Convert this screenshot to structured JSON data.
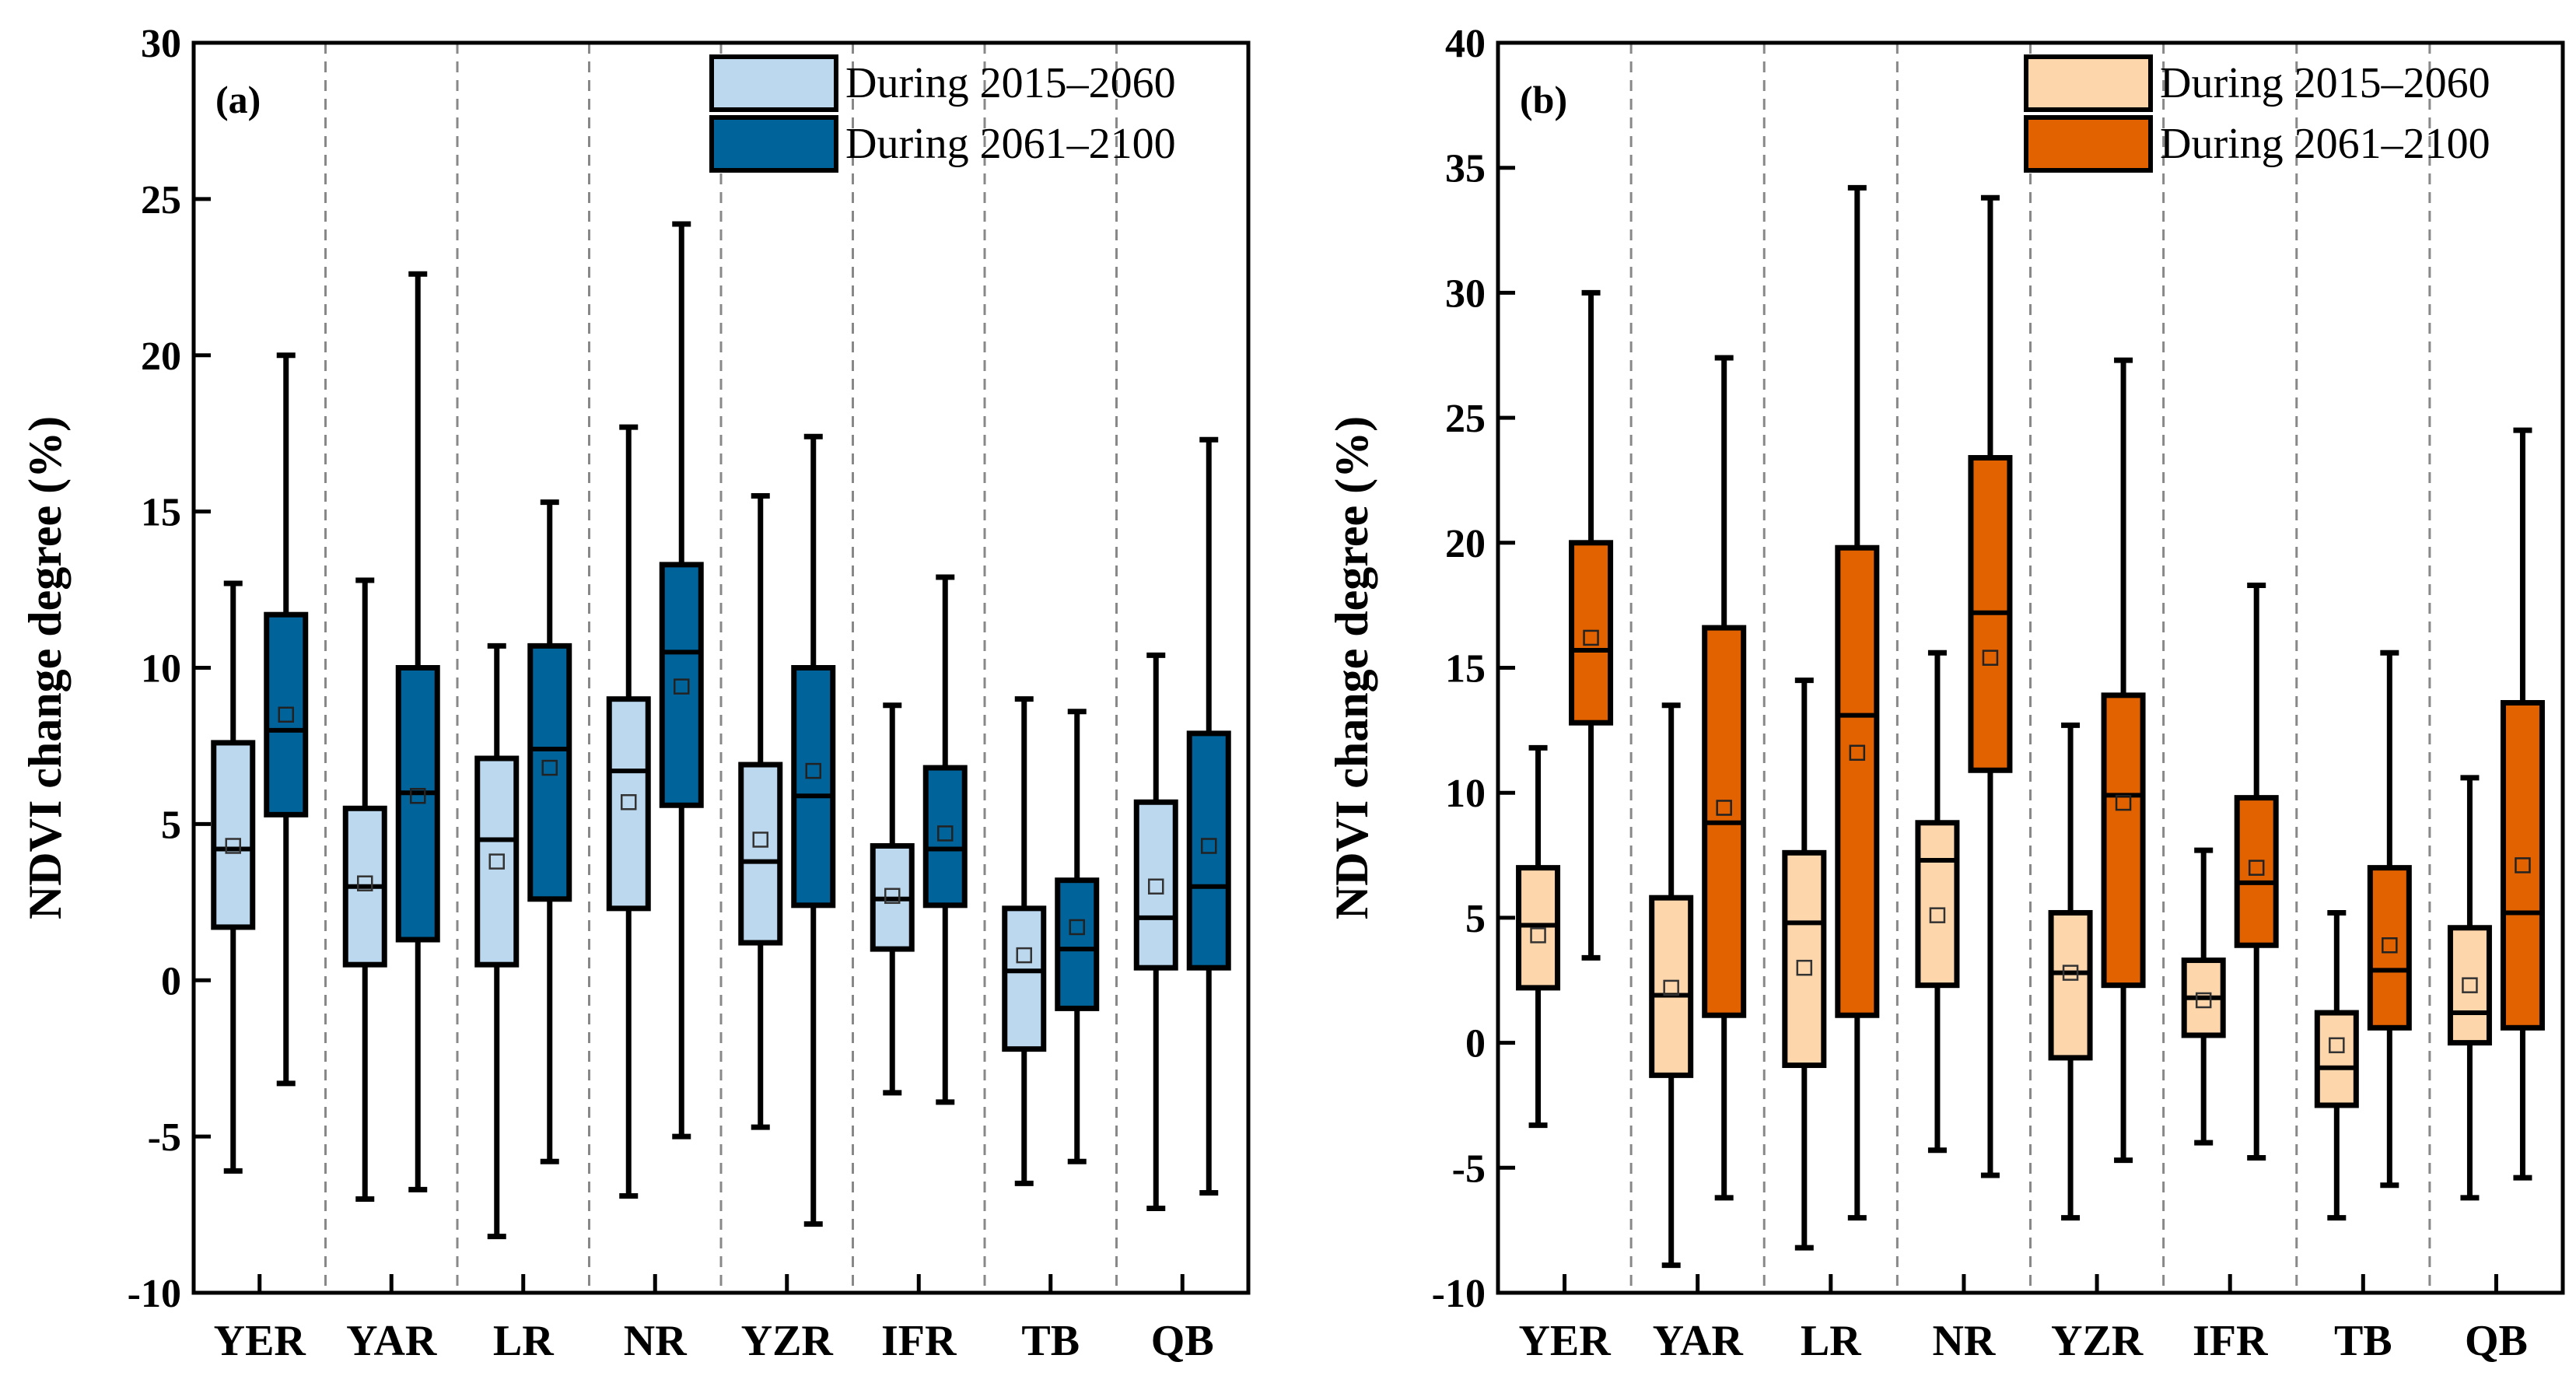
{
  "chart_data": [
    {
      "type": "box",
      "panel_label": "(a)",
      "ylabel": "NDVI change degree (%)",
      "ylim": [
        -10,
        30
      ],
      "yticks": [
        -10,
        -5,
        0,
        5,
        10,
        15,
        20,
        25,
        30
      ],
      "categories": [
        "YER",
        "YAR",
        "LR",
        "NR",
        "YZR",
        "IFR",
        "TB",
        "QB"
      ],
      "legend_position": "top-right",
      "series": [
        {
          "name": "During 2015–2060",
          "color": "#bcd8ee",
          "boxes": [
            {
              "min": -6.1,
              "q1": 1.7,
              "median": 4.2,
              "q3": 7.6,
              "max": 12.7,
              "mean": 4.3
            },
            {
              "min": -7.0,
              "q1": 0.5,
              "median": 3.0,
              "q3": 5.5,
              "max": 12.8,
              "mean": 3.1
            },
            {
              "min": -8.2,
              "q1": 0.5,
              "median": 4.5,
              "q3": 7.1,
              "max": 10.7,
              "mean": 3.8
            },
            {
              "min": -6.9,
              "q1": 2.3,
              "median": 6.7,
              "q3": 9.0,
              "max": 17.7,
              "mean": 5.7
            },
            {
              "min": -4.7,
              "q1": 1.2,
              "median": 3.8,
              "q3": 6.9,
              "max": 15.5,
              "mean": 4.5
            },
            {
              "min": -3.6,
              "q1": 1.0,
              "median": 2.6,
              "q3": 4.3,
              "max": 8.8,
              "mean": 2.7
            },
            {
              "min": -6.5,
              "q1": -2.2,
              "median": 0.3,
              "q3": 2.3,
              "max": 9.0,
              "mean": 0.8
            },
            {
              "min": -7.3,
              "q1": 0.4,
              "median": 2.0,
              "q3": 5.7,
              "max": 10.4,
              "mean": 3.0
            }
          ]
        },
        {
          "name": "During 2061–2100",
          "color": "#00649b",
          "boxes": [
            {
              "min": -3.3,
              "q1": 5.3,
              "median": 8.0,
              "q3": 11.7,
              "max": 20.0,
              "mean": 8.5
            },
            {
              "min": -6.7,
              "q1": 1.3,
              "median": 6.0,
              "q3": 10.0,
              "max": 22.6,
              "mean": 5.9
            },
            {
              "min": -5.8,
              "q1": 2.6,
              "median": 7.4,
              "q3": 10.7,
              "max": 15.3,
              "mean": 6.8
            },
            {
              "min": -5.0,
              "q1": 5.6,
              "median": 10.5,
              "q3": 13.3,
              "max": 24.2,
              "mean": 9.4
            },
            {
              "min": -7.8,
              "q1": 2.4,
              "median": 5.9,
              "q3": 10.0,
              "max": 17.4,
              "mean": 6.7
            },
            {
              "min": -3.9,
              "q1": 2.4,
              "median": 4.2,
              "q3": 6.8,
              "max": 12.9,
              "mean": 4.7
            },
            {
              "min": -5.8,
              "q1": -0.9,
              "median": 1.0,
              "q3": 3.2,
              "max": 8.6,
              "mean": 1.7
            },
            {
              "min": -6.8,
              "q1": 0.4,
              "median": 3.0,
              "q3": 7.9,
              "max": 17.3,
              "mean": 4.3
            }
          ]
        }
      ]
    },
    {
      "type": "box",
      "panel_label": "(b)",
      "ylabel": "NDVI change degree (%)",
      "ylim": [
        -10,
        40
      ],
      "yticks": [
        -10,
        -5,
        0,
        5,
        10,
        15,
        20,
        25,
        30,
        35,
        40
      ],
      "categories": [
        "YER",
        "YAR",
        "LR",
        "NR",
        "YZR",
        "IFR",
        "TB",
        "QB"
      ],
      "legend_position": "top-right",
      "series": [
        {
          "name": "During 2015–2060",
          "color": "#fdd6ab",
          "boxes": [
            {
              "min": -3.3,
              "q1": 2.2,
              "median": 4.7,
              "q3": 7.0,
              "max": 11.8,
              "mean": 4.3
            },
            {
              "min": -8.9,
              "q1": -1.3,
              "median": 1.9,
              "q3": 5.8,
              "max": 13.5,
              "mean": 2.2
            },
            {
              "min": -8.2,
              "q1": -0.9,
              "median": 4.8,
              "q3": 7.6,
              "max": 14.5,
              "mean": 3.0
            },
            {
              "min": -4.3,
              "q1": 2.3,
              "median": 7.3,
              "q3": 8.8,
              "max": 15.6,
              "mean": 5.1
            },
            {
              "min": -7.0,
              "q1": -0.6,
              "median": 2.8,
              "q3": 5.2,
              "max": 12.7,
              "mean": 2.8
            },
            {
              "min": -4.0,
              "q1": 0.3,
              "median": 1.8,
              "q3": 3.3,
              "max": 7.7,
              "mean": 1.7
            },
            {
              "min": -7.0,
              "q1": -2.5,
              "median": -1.0,
              "q3": 1.2,
              "max": 5.2,
              "mean": -0.1
            },
            {
              "min": -6.2,
              "q1": 0.0,
              "median": 1.2,
              "q3": 4.6,
              "max": 10.6,
              "mean": 2.3
            }
          ]
        },
        {
          "name": "During 2061–2100",
          "color": "#e26200",
          "boxes": [
            {
              "min": 3.4,
              "q1": 12.8,
              "median": 15.7,
              "q3": 20.0,
              "max": 30.0,
              "mean": 16.2
            },
            {
              "min": -6.2,
              "q1": 1.1,
              "median": 8.8,
              "q3": 16.6,
              "max": 27.4,
              "mean": 9.4
            },
            {
              "min": -7.0,
              "q1": 1.1,
              "median": 13.1,
              "q3": 19.8,
              "max": 34.2,
              "mean": 11.6
            },
            {
              "min": -5.3,
              "q1": 10.9,
              "median": 17.2,
              "q3": 23.4,
              "max": 33.8,
              "mean": 15.4
            },
            {
              "min": -4.7,
              "q1": 2.3,
              "median": 9.9,
              "q3": 13.9,
              "max": 27.3,
              "mean": 9.6
            },
            {
              "min": -4.6,
              "q1": 3.9,
              "median": 6.4,
              "q3": 9.8,
              "max": 18.3,
              "mean": 7.0
            },
            {
              "min": -5.7,
              "q1": 0.6,
              "median": 2.9,
              "q3": 7.0,
              "max": 15.6,
              "mean": 3.9
            },
            {
              "min": -5.4,
              "q1": 0.6,
              "median": 5.2,
              "q3": 13.6,
              "max": 24.5,
              "mean": 7.1
            }
          ]
        }
      ]
    }
  ]
}
